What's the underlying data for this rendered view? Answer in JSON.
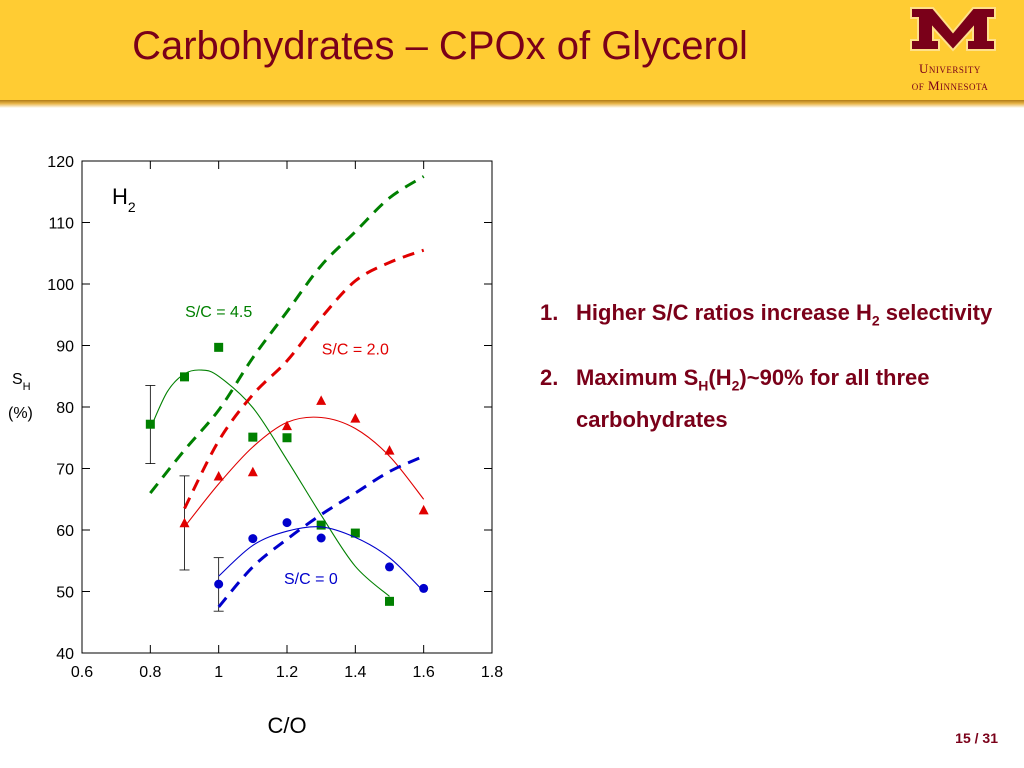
{
  "header": {
    "title": "Carbohydrates – CPOx of Glycerol",
    "logo_line1": "University",
    "logo_line2": "of Minnesota",
    "logo_icon": "block-m-icon"
  },
  "bullets": [
    {
      "number": "1.",
      "text": "Higher S/C ratios increase H",
      "sub": "2",
      "text2": " selectivity"
    },
    {
      "number": "2.",
      "text": "Maximum S",
      "sub": "H",
      "text2": "(H",
      "sub2": "2",
      "text3": ")~90% for all three carbohydrates"
    }
  ],
  "page": {
    "current": "15",
    "sep": " / ",
    "total": "31"
  },
  "colors": {
    "maroon": "#7a0019",
    "gold": "#ffcc33",
    "green": "#008000",
    "red": "#e00000",
    "blue": "#0000cc"
  },
  "chart_data": {
    "type": "scatter",
    "xlabel": "C/O",
    "ylabel_main": "S",
    "ylabel_sub": "H",
    "ylabel_unit": "(%)",
    "annotation_main": "H",
    "annotation_sub": "2",
    "xlim": [
      0.6,
      1.8
    ],
    "ylim": [
      40,
      120
    ],
    "xticks": [
      0.6,
      0.8,
      1,
      1.2,
      1.4,
      1.6,
      1.8
    ],
    "xtick_labels": [
      "0.6",
      "0.8",
      "1",
      "1.2",
      "1.4",
      "1.6",
      "1.8"
    ],
    "yticks": [
      40,
      50,
      60,
      70,
      80,
      90,
      100,
      110,
      120
    ],
    "ytick_labels": [
      "40",
      "50",
      "60",
      "70",
      "80",
      "90",
      "100",
      "110",
      "120"
    ],
    "grid": false,
    "series": [
      {
        "name": "S/C = 4.5",
        "color": "#008000",
        "marker": "square",
        "points": [
          [
            0.8,
            77.2
          ],
          [
            0.9,
            84.9
          ],
          [
            1.0,
            89.7
          ],
          [
            1.1,
            75.1
          ],
          [
            1.2,
            75.0
          ],
          [
            1.3,
            60.8
          ],
          [
            1.4,
            59.5
          ],
          [
            1.5,
            48.4
          ]
        ],
        "fit": [
          [
            0.8,
            76.5
          ],
          [
            0.85,
            82.5
          ],
          [
            0.9,
            85.4
          ],
          [
            0.95,
            86.0
          ],
          [
            1.0,
            85.0
          ],
          [
            1.1,
            79.9
          ],
          [
            1.2,
            71.4
          ],
          [
            1.3,
            62.4
          ],
          [
            1.4,
            54.1
          ],
          [
            1.5,
            49.2
          ]
        ],
        "model": [
          [
            0.8,
            66.0
          ],
          [
            0.9,
            73.0
          ],
          [
            1.0,
            79.5
          ],
          [
            1.1,
            88.0
          ],
          [
            1.2,
            95.5
          ],
          [
            1.3,
            103.0
          ],
          [
            1.4,
            108.5
          ],
          [
            1.5,
            114.0
          ],
          [
            1.6,
            117.5
          ]
        ]
      },
      {
        "name": "S/C = 2.0",
        "color": "#e00000",
        "marker": "triangle",
        "points": [
          [
            0.9,
            61.1
          ],
          [
            1.0,
            68.7
          ],
          [
            1.1,
            69.4
          ],
          [
            1.2,
            76.9
          ],
          [
            1.3,
            81.0
          ],
          [
            1.4,
            78.1
          ],
          [
            1.5,
            72.9
          ],
          [
            1.6,
            63.2
          ]
        ],
        "fit": [
          [
            0.9,
            60.5
          ],
          [
            1.0,
            67.5
          ],
          [
            1.1,
            73.5
          ],
          [
            1.2,
            77.5
          ],
          [
            1.3,
            78.3
          ],
          [
            1.4,
            76.5
          ],
          [
            1.5,
            72.0
          ],
          [
            1.6,
            65.0
          ]
        ],
        "model": [
          [
            0.9,
            63.5
          ],
          [
            1.0,
            74.5
          ],
          [
            1.1,
            82.0
          ],
          [
            1.2,
            87.5
          ],
          [
            1.3,
            94.5
          ],
          [
            1.4,
            100.5
          ],
          [
            1.5,
            103.5
          ],
          [
            1.6,
            105.5
          ]
        ]
      },
      {
        "name": "S/C = 0",
        "color": "#0000cc",
        "marker": "circle",
        "points": [
          [
            1.0,
            51.2
          ],
          [
            1.1,
            58.6
          ],
          [
            1.2,
            61.2
          ],
          [
            1.3,
            58.7
          ],
          [
            1.5,
            54.0
          ],
          [
            1.6,
            50.5
          ]
        ],
        "fit": [
          [
            1.0,
            52.5
          ],
          [
            1.1,
            57.5
          ],
          [
            1.2,
            59.8
          ],
          [
            1.3,
            60.5
          ],
          [
            1.4,
            58.8
          ],
          [
            1.5,
            55.5
          ],
          [
            1.6,
            50.0
          ]
        ],
        "model": [
          [
            1.0,
            47.5
          ],
          [
            1.1,
            54.0
          ],
          [
            1.2,
            58.5
          ],
          [
            1.3,
            62.5
          ],
          [
            1.4,
            66.0
          ],
          [
            1.5,
            69.5
          ],
          [
            1.6,
            72.0
          ]
        ]
      }
    ],
    "error_bars": [
      [
        0.8,
        70.8,
        83.5
      ],
      [
        0.9,
        53.5,
        68.8
      ],
      [
        1.0,
        46.8,
        55.5
      ]
    ],
    "series_labels": [
      {
        "text": "S/C = 4.5",
        "x": 1.0,
        "y": 94.6,
        "color": "#008000"
      },
      {
        "text": "S/C = 2.0",
        "x": 1.4,
        "y": 88.5,
        "color": "#e00000"
      },
      {
        "text": "S/C = 0",
        "x": 1.27,
        "y": 51.2,
        "color": "#0000cc"
      }
    ]
  }
}
